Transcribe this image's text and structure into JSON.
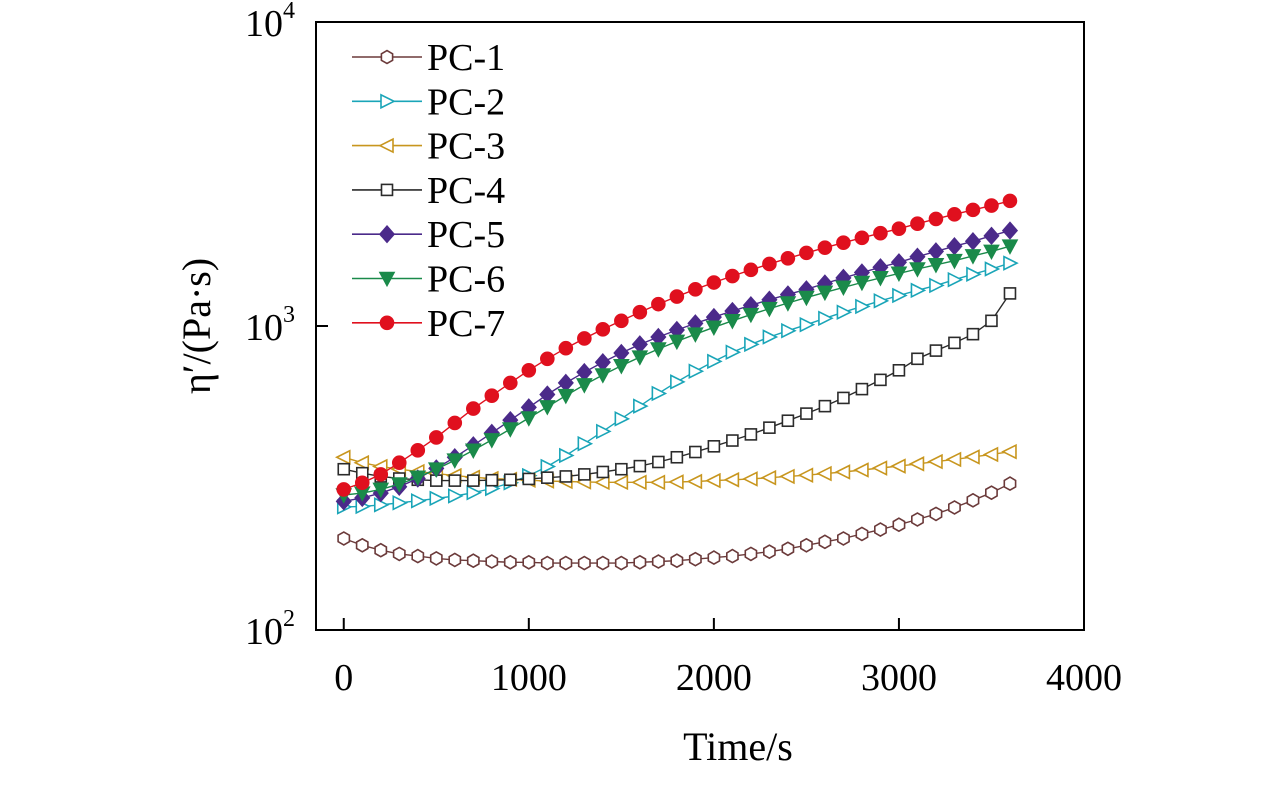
{
  "chart_data": {
    "type": "line",
    "title": "",
    "xlabel": "Time/s",
    "ylabel": "η′/(Pa·s)",
    "yscale": "log",
    "xlim": [
      -150,
      4000
    ],
    "ylim": [
      100,
      10000
    ],
    "x_ticks": [
      0,
      1000,
      2000,
      3000,
      4000
    ],
    "x_tick_labels": [
      "0",
      "1000",
      "2000",
      "3000",
      "4000"
    ],
    "y_ticks": [
      {
        "value": 100,
        "base": "10",
        "exp": "2"
      },
      {
        "value": 1000,
        "base": "10",
        "exp": "3"
      },
      {
        "value": 10000,
        "base": "10",
        "exp": "4"
      }
    ],
    "legend_position": "top-left",
    "series": [
      {
        "name": "PC-1",
        "color": "#6b3a3a",
        "marker": "hexagon",
        "filled": false,
        "x": [
          0,
          100,
          200,
          300,
          400,
          500,
          600,
          700,
          800,
          900,
          1000,
          1100,
          1200,
          1300,
          1400,
          1500,
          1600,
          1700,
          1800,
          1900,
          2000,
          2100,
          2200,
          2300,
          2400,
          2500,
          2600,
          2700,
          2800,
          2900,
          3000,
          3100,
          3200,
          3300,
          3400,
          3500,
          3600
        ],
        "values": [
          200,
          190,
          183,
          178,
          175,
          172,
          170,
          169,
          168,
          167,
          167,
          166,
          166,
          166,
          166,
          166,
          167,
          168,
          169,
          171,
          173,
          175,
          178,
          181,
          185,
          190,
          195,
          200,
          207,
          214,
          222,
          231,
          241,
          253,
          267,
          283,
          303
        ]
      },
      {
        "name": "PC-2",
        "color": "#1aa5b8",
        "marker": "triangle-right",
        "filled": false,
        "x": [
          0,
          100,
          200,
          300,
          400,
          500,
          600,
          700,
          800,
          900,
          1000,
          1100,
          1200,
          1300,
          1400,
          1500,
          1600,
          1700,
          1800,
          1900,
          2000,
          2100,
          2200,
          2300,
          2400,
          2500,
          2600,
          2700,
          2800,
          2900,
          3000,
          3100,
          3200,
          3300,
          3400,
          3500,
          3600
        ],
        "values": [
          254,
          255,
          258,
          262,
          266,
          271,
          276,
          283,
          292,
          305,
          322,
          345,
          375,
          410,
          450,
          495,
          545,
          600,
          655,
          710,
          765,
          820,
          870,
          920,
          965,
          1010,
          1060,
          1110,
          1160,
          1210,
          1260,
          1310,
          1360,
          1420,
          1480,
          1540,
          1610
        ]
      },
      {
        "name": "PC-3",
        "color": "#c8961e",
        "marker": "triangle-left",
        "filled": false,
        "x": [
          0,
          100,
          200,
          300,
          400,
          500,
          600,
          700,
          800,
          900,
          1000,
          1100,
          1200,
          1300,
          1400,
          1500,
          1600,
          1700,
          1800,
          1900,
          2000,
          2100,
          2200,
          2300,
          2400,
          2500,
          2600,
          2700,
          2800,
          2900,
          3000,
          3100,
          3200,
          3300,
          3400,
          3500,
          3600
        ],
        "values": [
          370,
          355,
          345,
          338,
          332,
          327,
          322,
          318,
          315,
          313,
          311,
          309,
          308,
          307,
          306,
          306,
          306,
          306,
          307,
          308,
          310,
          312,
          314,
          317,
          320,
          323,
          327,
          331,
          336,
          341,
          346,
          352,
          358,
          364,
          371,
          378,
          386
        ]
      },
      {
        "name": "PC-4",
        "color": "#2b2b2b",
        "marker": "square",
        "filled": false,
        "x": [
          0,
          100,
          200,
          300,
          400,
          500,
          600,
          700,
          800,
          900,
          1000,
          1100,
          1200,
          1300,
          1400,
          1500,
          1600,
          1700,
          1800,
          1900,
          2000,
          2100,
          2200,
          2300,
          2400,
          2500,
          2600,
          2700,
          2800,
          2900,
          3000,
          3100,
          3200,
          3300,
          3400,
          3500,
          3600
        ],
        "values": [
          338,
          328,
          320,
          315,
          312,
          310,
          310,
          310,
          311,
          312,
          314,
          317,
          320,
          325,
          331,
          338,
          346,
          357,
          370,
          385,
          402,
          420,
          440,
          463,
          488,
          515,
          545,
          580,
          620,
          665,
          715,
          780,
          830,
          880,
          940,
          1040,
          1280
        ]
      },
      {
        "name": "PC-5",
        "color": "#4b2a8a",
        "marker": "diamond",
        "filled": true,
        "x": [
          0,
          100,
          200,
          300,
          400,
          500,
          600,
          700,
          800,
          900,
          1000,
          1100,
          1200,
          1300,
          1400,
          1500,
          1600,
          1700,
          1800,
          1900,
          2000,
          2100,
          2200,
          2300,
          2400,
          2500,
          2600,
          2700,
          2800,
          2900,
          3000,
          3100,
          3200,
          3300,
          3400,
          3500,
          3600
        ],
        "values": [
          265,
          272,
          282,
          296,
          315,
          340,
          370,
          405,
          445,
          490,
          540,
          595,
          650,
          705,
          760,
          815,
          870,
          920,
          970,
          1020,
          1070,
          1120,
          1170,
          1220,
          1270,
          1320,
          1380,
          1440,
          1500,
          1560,
          1620,
          1690,
          1760,
          1830,
          1900,
          1980,
          2060
        ]
      },
      {
        "name": "PC-6",
        "color": "#1a8a4a",
        "marker": "triangle-down",
        "filled": true,
        "x": [
          0,
          100,
          200,
          300,
          400,
          500,
          600,
          700,
          800,
          900,
          1000,
          1100,
          1200,
          1300,
          1400,
          1500,
          1600,
          1700,
          1800,
          1900,
          2000,
          2100,
          2200,
          2300,
          2400,
          2500,
          2600,
          2700,
          2800,
          2900,
          3000,
          3100,
          3200,
          3300,
          3400,
          3500,
          3600
        ],
        "values": [
          278,
          282,
          290,
          302,
          318,
          338,
          362,
          390,
          422,
          458,
          498,
          542,
          590,
          640,
          690,
          740,
          790,
          840,
          890,
          940,
          990,
          1040,
          1090,
          1140,
          1190,
          1240,
          1290,
          1340,
          1390,
          1440,
          1490,
          1540,
          1590,
          1640,
          1700,
          1760,
          1830
        ]
      },
      {
        "name": "PC-7",
        "color": "#e0101e",
        "marker": "circle",
        "filled": true,
        "x": [
          0,
          100,
          200,
          300,
          400,
          500,
          600,
          700,
          800,
          900,
          1000,
          1100,
          1200,
          1300,
          1400,
          1500,
          1600,
          1700,
          1800,
          1900,
          2000,
          2100,
          2200,
          2300,
          2400,
          2500,
          2600,
          2700,
          2800,
          2900,
          3000,
          3100,
          3200,
          3300,
          3400,
          3500,
          3600
        ],
        "values": [
          290,
          305,
          325,
          355,
          390,
          430,
          480,
          535,
          590,
          650,
          715,
          780,
          845,
          910,
          975,
          1040,
          1110,
          1180,
          1250,
          1320,
          1390,
          1460,
          1530,
          1600,
          1670,
          1740,
          1810,
          1880,
          1950,
          2020,
          2090,
          2170,
          2250,
          2330,
          2410,
          2490,
          2580
        ]
      }
    ]
  }
}
